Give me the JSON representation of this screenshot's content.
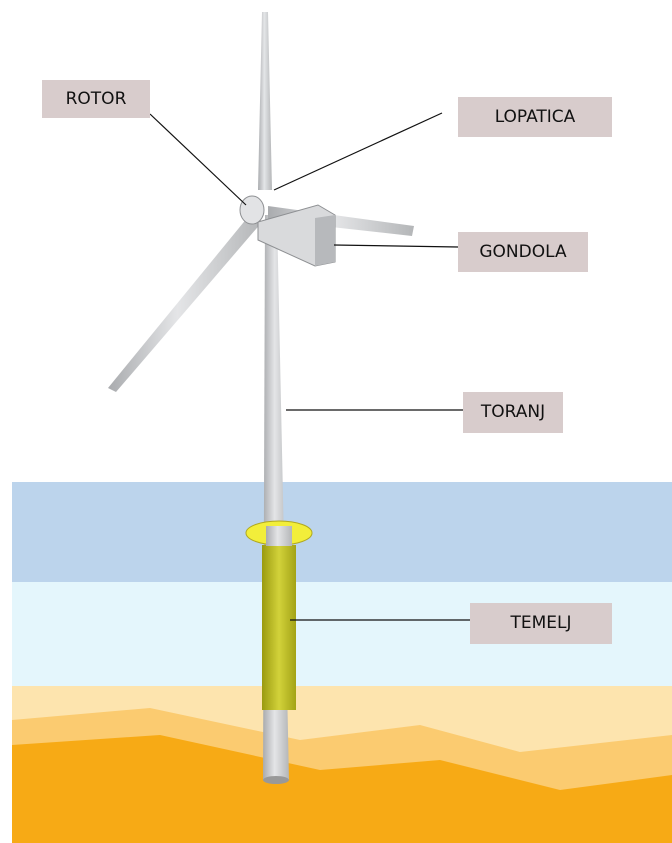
{
  "labels": [
    {
      "text": "ROTOR"
    },
    {
      "text": "LOPATICA"
    },
    {
      "text": "GONDOLA"
    },
    {
      "text": "TORANJ"
    },
    {
      "text": "TEMELJ"
    }
  ]
}
